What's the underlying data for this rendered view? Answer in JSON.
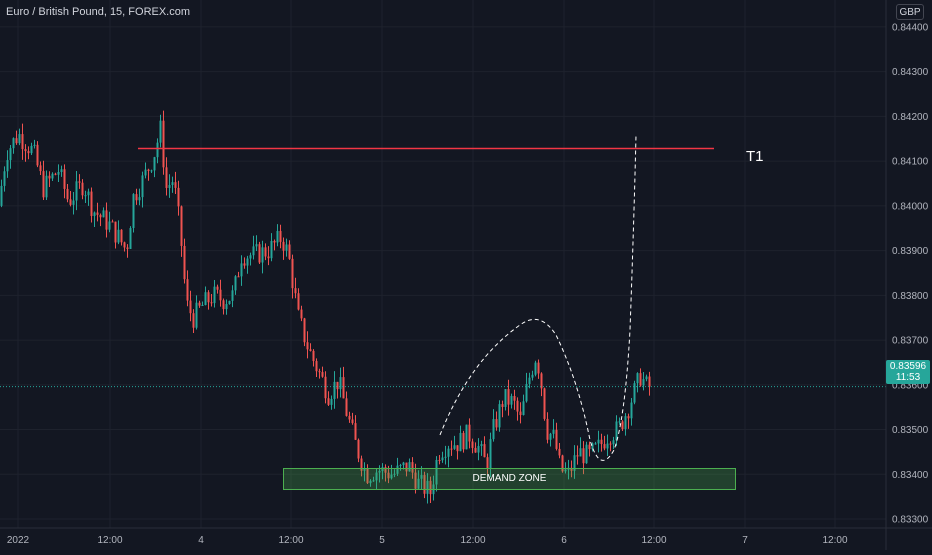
{
  "header": {
    "title": "Euro / British Pound, 15, FOREX.com",
    "currency": "GBP"
  },
  "price_tag": {
    "price": "0.83596",
    "countdown": "11:53"
  },
  "annotations": {
    "target_label": "T1",
    "zone_label": "DEMAND ZONE"
  },
  "colors": {
    "background": "#131722",
    "up": "#26a69a",
    "down": "#ef5350",
    "target_line": "#f23645",
    "zone": "#4caf50",
    "grid": "#1e222d",
    "axis_text": "#b2b5be"
  },
  "chart_data": {
    "type": "candlestick",
    "title": "Euro / British Pound, 15, FOREX.com",
    "ylim": [
      0.8328,
      0.8446
    ],
    "y_ticks": [
      "0.83300",
      "0.83400",
      "0.83500",
      "0.83600",
      "0.83700",
      "0.83800",
      "0.83900",
      "0.84000",
      "0.84100",
      "0.84200",
      "0.84300",
      "0.84400"
    ],
    "x_ticks": [
      "2022",
      "12:00",
      "4",
      "12:00",
      "5",
      "12:00",
      "6",
      "12:00",
      "7",
      "12:00"
    ],
    "grid": true,
    "last_price": 0.83596,
    "target_level": 0.84128,
    "demand_zone": [
      0.83315,
      0.83355
    ],
    "path": [
      [
        0,
        0.84
      ],
      [
        8,
        0.8412
      ],
      [
        20,
        0.8416
      ],
      [
        35,
        0.8412
      ],
      [
        45,
        0.8404
      ],
      [
        60,
        0.8408
      ],
      [
        70,
        0.8401
      ],
      [
        85,
        0.8405
      ],
      [
        95,
        0.8399
      ],
      [
        110,
        0.8396
      ],
      [
        120,
        0.8393
      ],
      [
        128,
        0.839
      ],
      [
        135,
        0.8402
      ],
      [
        145,
        0.8406
      ],
      [
        155,
        0.8411
      ],
      [
        162,
        0.8417
      ],
      [
        168,
        0.8404
      ],
      [
        175,
        0.8406
      ],
      [
        182,
        0.8394
      ],
      [
        188,
        0.8378
      ],
      [
        195,
        0.8375
      ],
      [
        205,
        0.8378
      ],
      [
        215,
        0.838
      ],
      [
        225,
        0.8379
      ],
      [
        235,
        0.838
      ],
      [
        243,
        0.8389
      ],
      [
        255,
        0.8389
      ],
      [
        270,
        0.839
      ],
      [
        283,
        0.8393
      ],
      [
        290,
        0.8389
      ],
      [
        300,
        0.8375
      ],
      [
        310,
        0.8368
      ],
      [
        320,
        0.8363
      ],
      [
        330,
        0.8358
      ],
      [
        340,
        0.8361
      ],
      [
        348,
        0.8354
      ],
      [
        358,
        0.8346
      ],
      [
        368,
        0.834
      ],
      [
        380,
        0.8341
      ],
      [
        395,
        0.834
      ],
      [
        410,
        0.8342
      ],
      [
        420,
        0.8338
      ],
      [
        432,
        0.8336
      ],
      [
        440,
        0.8345
      ],
      [
        450,
        0.8347
      ],
      [
        460,
        0.8347
      ],
      [
        470,
        0.8349
      ],
      [
        480,
        0.8346
      ],
      [
        488,
        0.8342
      ],
      [
        495,
        0.835
      ],
      [
        505,
        0.8357
      ],
      [
        515,
        0.8356
      ],
      [
        522,
        0.8352
      ],
      [
        530,
        0.8361
      ],
      [
        538,
        0.8367
      ],
      [
        543,
        0.836
      ],
      [
        548,
        0.835
      ],
      [
        556,
        0.8348
      ],
      [
        562,
        0.8341
      ],
      [
        570,
        0.834
      ],
      [
        580,
        0.8345
      ],
      [
        590,
        0.8344
      ],
      [
        600,
        0.8346
      ],
      [
        610,
        0.8349
      ],
      [
        620,
        0.835
      ],
      [
        630,
        0.8355
      ],
      [
        642,
        0.8362
      ],
      [
        650,
        0.8359
      ]
    ]
  }
}
